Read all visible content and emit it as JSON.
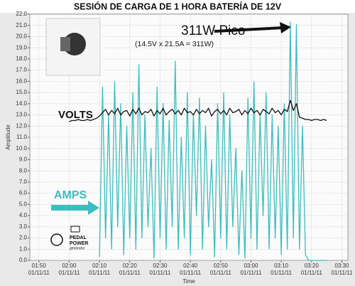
{
  "chart_data": {
    "type": "line",
    "title": "SESIÓN DE CARGA DE 1 HORA BATERÍA DE 12V",
    "xlabel": "Time",
    "ylabel": "Amplitude",
    "annotations": [
      "311W Pico",
      "(14.5V x 21.5A = 311W)",
      "VOLTS",
      "AMPS",
      "PEDAL",
      "POWER",
      "generator"
    ],
    "grid": true,
    "xlim": [
      "01:47",
      "03:32"
    ],
    "xticks": [
      {
        "value": "01:50",
        "label": "01:50\n01/11/11"
      },
      {
        "value": "02:00",
        "label": "02:00\n01/11/11"
      },
      {
        "value": "02:10",
        "label": "02:10\n01/11/11"
      },
      {
        "value": "02:20",
        "label": "02:20\n01/11/11"
      },
      {
        "value": "02:30",
        "label": "02:30\n01/11/11"
      },
      {
        "value": "02:40",
        "label": "02:40\n01/11/11"
      },
      {
        "value": "02:50",
        "label": "02:50\n01/11/11"
      },
      {
        "value": "03:00",
        "label": "03:00\n01/11/11"
      },
      {
        "value": "03:10",
        "label": "03:10\n01/11/11"
      },
      {
        "value": "03:20",
        "label": "03:20\n01/11/11"
      },
      {
        "value": "03:30",
        "label": "03:30\n01/11/11"
      }
    ],
    "ylim": [
      0,
      22
    ],
    "yticks": [
      {
        "value": 0,
        "label": "0.0"
      },
      {
        "value": 1,
        "label": "1.0"
      },
      {
        "value": 2,
        "label": "2.0"
      },
      {
        "value": 3,
        "label": "3.0"
      },
      {
        "value": 4,
        "label": "4.0"
      },
      {
        "value": 5,
        "label": "5.0"
      },
      {
        "value": 6,
        "label": "6.0"
      },
      {
        "value": 7,
        "label": "7.0"
      },
      {
        "value": 8,
        "label": "8.0"
      },
      {
        "value": 9,
        "label": "9.0"
      },
      {
        "value": 10,
        "label": "10.0"
      },
      {
        "value": 11,
        "label": "11.0"
      },
      {
        "value": 12,
        "label": "12.0"
      },
      {
        "value": 13,
        "label": "13.0"
      },
      {
        "value": 14,
        "label": "14.0"
      },
      {
        "value": 15,
        "label": "15.0"
      },
      {
        "value": 16,
        "label": "16.0"
      },
      {
        "value": 17,
        "label": "17.0"
      },
      {
        "value": 18,
        "label": "18.0"
      },
      {
        "value": 19,
        "label": "19.0"
      },
      {
        "value": 20,
        "label": "20.0"
      },
      {
        "value": 21,
        "label": "21.0"
      },
      {
        "value": 22,
        "label": "22.0"
      }
    ],
    "x": [
      "02:00",
      "02:01",
      "02:02",
      "02:03",
      "02:04",
      "02:05",
      "02:06",
      "02:07",
      "02:08",
      "02:09",
      "02:10",
      "02:11",
      "02:12",
      "02:13",
      "02:14",
      "02:15",
      "02:16",
      "02:17",
      "02:18",
      "02:19",
      "02:20",
      "02:21",
      "02:22",
      "02:23",
      "02:24",
      "02:25",
      "02:26",
      "02:27",
      "02:28",
      "02:29",
      "02:30",
      "02:31",
      "02:32",
      "02:33",
      "02:34",
      "02:35",
      "02:36",
      "02:37",
      "02:38",
      "02:39",
      "02:40",
      "02:41",
      "02:42",
      "02:43",
      "02:44",
      "02:45",
      "02:46",
      "02:47",
      "02:48",
      "02:49",
      "02:50",
      "02:51",
      "02:52",
      "02:53",
      "02:54",
      "02:55",
      "02:56",
      "02:57",
      "02:58",
      "02:59",
      "03:00",
      "03:01",
      "03:02",
      "03:03",
      "03:04",
      "03:05",
      "03:06",
      "03:07",
      "03:08",
      "03:09",
      "03:10",
      "03:11",
      "03:12",
      "03:13",
      "03:14",
      "03:15",
      "03:16",
      "03:17",
      "03:18",
      "03:19",
      "03:20",
      "03:21",
      "03:22",
      "03:23",
      "03:24",
      "03:25"
    ],
    "series": [
      {
        "name": "AMPS",
        "color": "#3dbdbe",
        "values": [
          null,
          null,
          null,
          null,
          null,
          null,
          null,
          null,
          null,
          null,
          0.3,
          15.5,
          2,
          13,
          1,
          16,
          3,
          14,
          0.5,
          12,
          2,
          15,
          1,
          17.5,
          2,
          13,
          3,
          10,
          0.2,
          15.5,
          2,
          14,
          1,
          12.5,
          3,
          17.8,
          1,
          11,
          2,
          15,
          0.5,
          13,
          4,
          14.5,
          1,
          12,
          3,
          9,
          0.3,
          14,
          2,
          15,
          1,
          13,
          3,
          10,
          0.5,
          8,
          0.2,
          14.5,
          2,
          16,
          1,
          13,
          4,
          15,
          1,
          13,
          2,
          12,
          0.5,
          14,
          1,
          21.3,
          2,
          21.1,
          1,
          12,
          0.5,
          0,
          0,
          0,
          0,
          0,
          0,
          0
        ]
      },
      {
        "name": "VOLTS",
        "color": "#111111",
        "values": [
          12.4,
          12.5,
          12.5,
          12.6,
          12.5,
          12.5,
          12.6,
          12.5,
          12.6,
          12.7,
          12.9,
          13.2,
          13.5,
          13.0,
          13.4,
          13.1,
          13.6,
          13.0,
          13.3,
          13.4,
          12.9,
          13.5,
          13.1,
          13.6,
          13.0,
          13.3,
          13.2,
          13.5,
          12.9,
          13.4,
          13.1,
          13.6,
          13.0,
          13.3,
          13.5,
          13.1,
          13.4,
          13.0,
          13.6,
          13.2,
          13.3,
          13.0,
          13.5,
          13.1,
          13.4,
          13.2,
          13.6,
          12.9,
          13.3,
          13.5,
          13.1,
          13.4,
          13.0,
          13.6,
          13.2,
          13.3,
          13.5,
          13.0,
          13.4,
          13.1,
          13.6,
          13.2,
          13.4,
          13.0,
          13.5,
          13.3,
          13.1,
          13.6,
          13.2,
          13.4,
          13.0,
          13.5,
          13.3,
          14.3,
          13.4,
          14.0,
          12.8,
          12.7,
          12.6,
          12.6,
          12.5,
          12.6,
          12.6,
          12.5,
          12.6,
          12.5
        ]
      }
    ]
  }
}
